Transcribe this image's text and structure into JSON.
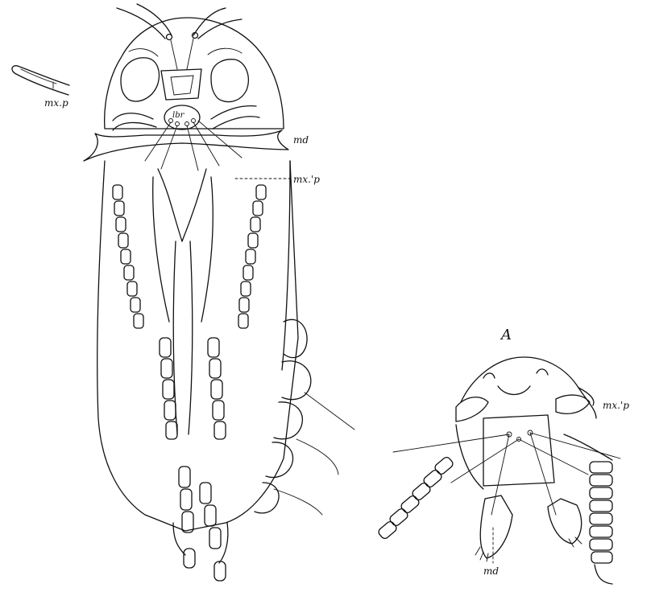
{
  "labels": {
    "maxillary_palp_detached": "mx.p",
    "mandible_main": "md",
    "maxillary_palp_main": "mx.'p",
    "labrum": "lbr",
    "panel_a_letter": "A",
    "maxillary_palp_a": "mx.'p",
    "mandible_a": "md"
  }
}
